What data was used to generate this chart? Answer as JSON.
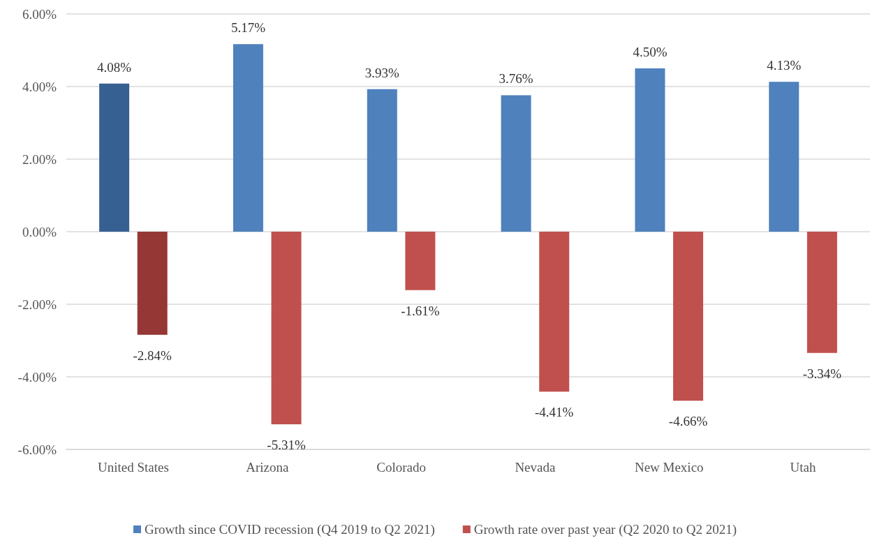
{
  "chart_data": {
    "type": "bar",
    "categories": [
      "United States",
      "Arizona",
      "Colorado",
      "Nevada",
      "New Mexico",
      "Utah"
    ],
    "series": [
      {
        "name": "Growth since COVID recession (Q4 2019 to Q2 2021)",
        "color": "#4f81bd",
        "colors": [
          "#376092",
          "#4f81bd",
          "#4f81bd",
          "#4f81bd",
          "#4f81bd",
          "#4f81bd"
        ],
        "values": [
          4.08,
          5.17,
          3.93,
          3.76,
          4.5,
          4.13
        ],
        "value_labels": [
          "4.08%",
          "5.17%",
          "3.93%",
          "3.76%",
          "4.50%",
          "4.13%"
        ]
      },
      {
        "name": "Growth rate over past year (Q2 2020 to Q2 2021)",
        "color": "#c0504d",
        "colors": [
          "#953735",
          "#c0504d",
          "#c0504d",
          "#c0504d",
          "#c0504d",
          "#c0504d"
        ],
        "values": [
          -2.84,
          -5.31,
          -1.61,
          -4.41,
          -4.66,
          -3.34
        ],
        "value_labels": [
          "-2.84%",
          "-5.31%",
          "-1.61%",
          "-4.41%",
          "-4.66%",
          "-3.34%"
        ]
      }
    ],
    "ylim": [
      -6,
      6
    ],
    "yticks": [
      {
        "value": -6,
        "label": "-6.00%"
      },
      {
        "value": -4,
        "label": "-4.00%"
      },
      {
        "value": -2,
        "label": "-2.00%"
      },
      {
        "value": 0,
        "label": "0.00%"
      },
      {
        "value": 2,
        "label": "2.00%"
      },
      {
        "value": 4,
        "label": "4.00%"
      },
      {
        "value": 6,
        "label": "6.00%"
      }
    ],
    "grid": "y",
    "legend": "bottom"
  }
}
